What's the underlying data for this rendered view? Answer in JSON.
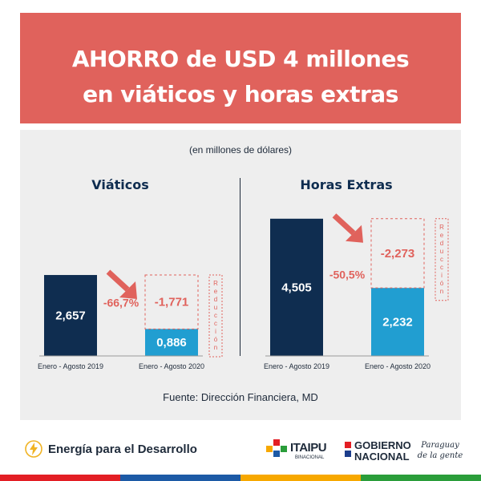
{
  "header": {
    "line1": "AHORRO de USD 4 millones",
    "line2": "en viáticos y horas extras"
  },
  "unit_note": "(en millones de dólares)",
  "source": "Fuente: Dirección Financiera, MD",
  "footer": {
    "tagline": "Energía para el Desarrollo",
    "itaipu_main": "ITAIPU",
    "itaipu_sub": "BINACIONAL",
    "gob_line1": "GOBIERNO",
    "gob_line2": "NACIONAL",
    "paraguay": "Paraguay de la gente"
  },
  "colors": {
    "banner": "#e0625c",
    "dark_bar": "#0f2d50",
    "light_bar": "#219ed1",
    "reduction": "#e0625c",
    "text": "#1e2a3a"
  },
  "chart_data": [
    {
      "type": "bar",
      "title": "Viáticos",
      "categories": [
        "Enero - Agosto 2019",
        "Enero - Agosto 2020"
      ],
      "values": [
        2.657,
        0.886
      ],
      "value_labels": [
        "2,657",
        "0,886"
      ],
      "reduction_value": 1.771,
      "reduction_label": "-1,771",
      "percent_change": "-66,7%",
      "reduction_tag": "Reducción"
    },
    {
      "type": "bar",
      "title": "Horas Extras",
      "categories": [
        "Enero - Agosto 2019",
        "Enero - Agosto 2020"
      ],
      "values": [
        4.505,
        2.232
      ],
      "value_labels": [
        "4,505",
        "2,232"
      ],
      "reduction_value": 2.273,
      "reduction_label": "-2,273",
      "percent_change": "-50,5%",
      "reduction_tag": "Reducción"
    }
  ]
}
